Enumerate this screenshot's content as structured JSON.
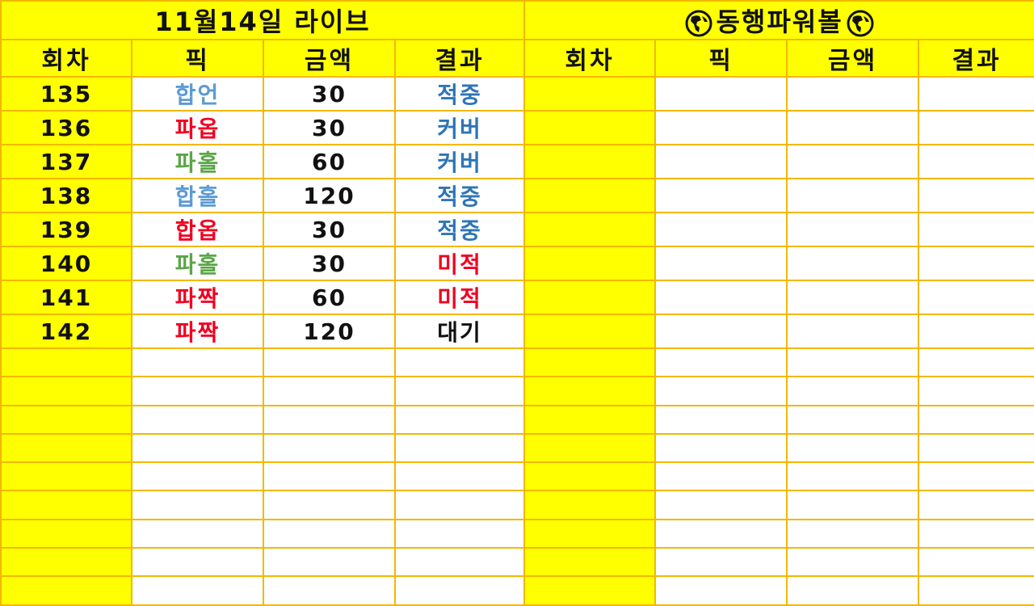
{
  "colors": {
    "header_bg": "#ffff00",
    "grid": "#f2b800",
    "blue_pick": "#5b9bd5",
    "blue_result": "#2e75b6",
    "red": "#f00020",
    "green": "#5aa646",
    "black": "#111111"
  },
  "left": {
    "title": "11월14일 라이브",
    "headers": [
      "회차",
      "픽",
      "금액",
      "결과"
    ],
    "rows": [
      {
        "round": "135",
        "pick": "합언",
        "pick_color": "#5b9bd5",
        "amount": "30",
        "result": "적중",
        "result_color": "#2e75b6"
      },
      {
        "round": "136",
        "pick": "파옵",
        "pick_color": "#f00020",
        "amount": "30",
        "result": "커버",
        "result_color": "#2e75b6"
      },
      {
        "round": "137",
        "pick": "파홀",
        "pick_color": "#5aa646",
        "amount": "60",
        "result": "커버",
        "result_color": "#2e75b6"
      },
      {
        "round": "138",
        "pick": "합홀",
        "pick_color": "#5b9bd5",
        "amount": "120",
        "result": "적중",
        "result_color": "#2e75b6"
      },
      {
        "round": "139",
        "pick": "합옵",
        "pick_color": "#f00020",
        "amount": "30",
        "result": "적중",
        "result_color": "#2e75b6"
      },
      {
        "round": "140",
        "pick": "파홀",
        "pick_color": "#5aa646",
        "amount": "30",
        "result": "미적",
        "result_color": "#f00020"
      },
      {
        "round": "141",
        "pick": "파짝",
        "pick_color": "#f00020",
        "amount": "60",
        "result": "미적",
        "result_color": "#f00020"
      },
      {
        "round": "142",
        "pick": "파짝",
        "pick_color": "#f00020",
        "amount": "120",
        "result": "대기",
        "result_color": "#111111"
      }
    ]
  },
  "right": {
    "title": "동행파워볼",
    "title_icon": "globe-americas-icon",
    "headers": [
      "회차",
      "픽",
      "금액",
      "결과"
    ],
    "rows": []
  }
}
